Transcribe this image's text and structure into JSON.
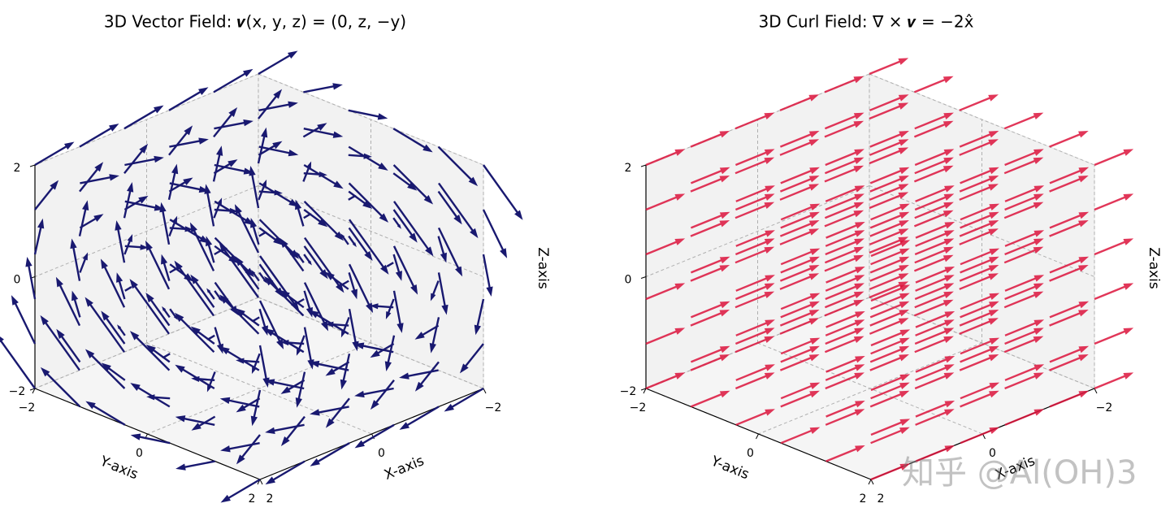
{
  "chart_data": [
    {
      "type": "quiver3d",
      "title": "3D Vector Field: 𝒗(x, y, z) = (0, z, −y)",
      "color": "#191970",
      "x": [
        -2,
        -1.2,
        -0.4,
        0.4,
        1.2,
        2
      ],
      "y": [
        -2,
        -1.2,
        -0.4,
        0.4,
        1.2,
        2
      ],
      "z": [
        -2,
        -1.2,
        -0.4,
        0.4,
        1.2,
        2
      ],
      "field": [
        [
          0,
          0,
          0,
          0
        ],
        [
          0,
          0,
          1,
          0
        ],
        [
          0,
          -1,
          0,
          0
        ]
      ],
      "xlim": [
        -2,
        2
      ],
      "ylim": [
        -2,
        2
      ],
      "zlim": [
        -2,
        2
      ],
      "xticks": [
        {
          "value": -2,
          "label": "−2"
        },
        0,
        2
      ],
      "yticks": [
        {
          "value": -2,
          "label": "−2"
        },
        0,
        2
      ],
      "zticks": [
        {
          "value": -2,
          "label": "−2"
        },
        0,
        2
      ],
      "xlabel": "X-axis",
      "ylabel": "Y-axis",
      "zlabel": "Z-axis",
      "grid": true
    },
    {
      "type": "quiver3d",
      "title": "3D Curl Field: ∇ × 𝒗 = −2x̂",
      "color": "#dc143c",
      "x": [
        -2,
        -1.2,
        -0.4,
        0.4,
        1.2,
        2
      ],
      "y": [
        -2,
        -1.2,
        -0.4,
        0.4,
        1.2,
        2
      ],
      "z": [
        -2,
        -1.2,
        -0.4,
        0.4,
        1.2,
        2
      ],
      "field": [
        [
          0,
          0,
          0,
          -2
        ],
        [
          0,
          0,
          0,
          0
        ],
        [
          0,
          0,
          0,
          0
        ]
      ],
      "xlim": [
        -2,
        2
      ],
      "ylim": [
        -2,
        2
      ],
      "zlim": [
        -2,
        2
      ],
      "xticks": [
        {
          "value": -2,
          "label": "−2"
        },
        0,
        2
      ],
      "yticks": [
        {
          "value": -2,
          "label": "−2"
        },
        0,
        2
      ],
      "zticks": [
        {
          "value": -2,
          "label": "−2"
        },
        0,
        2
      ],
      "xlabel": "X-axis",
      "ylabel": "Y-axis",
      "zlabel": "Z-axis",
      "grid": true
    }
  ],
  "watermark": "知乎 @Al(OH)3"
}
